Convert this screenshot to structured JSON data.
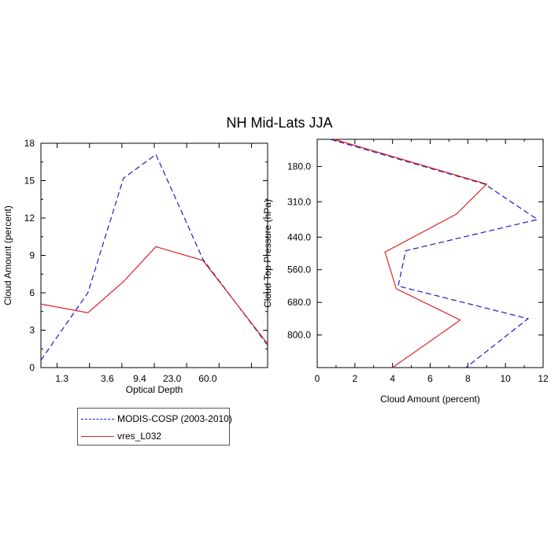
{
  "figure_title": "NH Mid-Lats JJA",
  "colors": {
    "modis": "#1a1acc",
    "model": "#dd2222",
    "axis": "#000000"
  },
  "legend": {
    "entries": [
      {
        "label": "MODIS-COSP (2003-2010)",
        "style": "dashed",
        "color": "#1a1acc"
      },
      {
        "label": "vres_L032",
        "style": "solid",
        "color": "#dd2222"
      }
    ]
  },
  "chart_data": [
    {
      "type": "line",
      "title": "",
      "xlabel": "Optical Depth",
      "ylabel": "Cloud Amount (percent)",
      "ylim": [
        0,
        18
      ],
      "yticks": [
        "0",
        "3",
        "6",
        "9",
        "12",
        "15",
        "18"
      ],
      "x_index_range": [
        0.5,
        7.5
      ],
      "x": [
        0.5,
        1.5,
        2.5,
        3.5,
        4.5,
        5.5,
        6.5,
        7.5
      ],
      "xtick_positions": [
        1,
        2,
        3,
        4,
        5,
        6
      ],
      "xtick_labels": [
        "1.3",
        "3.6",
        "9.4",
        "23.0",
        "60.0"
      ],
      "xtick_label_positions": [
        1,
        2,
        3,
        4,
        5,
        6,
        7
      ],
      "xtick_label_positions_used": [
        1,
        2,
        3,
        4,
        5
      ],
      "series": [
        {
          "name": "MODIS-COSP (2003-2010)",
          "values": [
            0.6,
            6.0,
            15.2,
            17.1,
            8.7,
            1.8
          ],
          "x": [
            0.5,
            1.95,
            3.05,
            4.05,
            5.5,
            7.5
          ]
        },
        {
          "name": "vres_L032",
          "values": [
            5.1,
            4.4,
            6.9,
            9.7,
            8.6,
            1.9
          ],
          "x": [
            0.5,
            1.95,
            3.05,
            4.05,
            5.5,
            7.5
          ]
        }
      ]
    },
    {
      "type": "line",
      "title": "",
      "xlabel": "Cloud Amount (percent)",
      "ylabel": "Cloud Top Pressure (hPa)",
      "xlim": [
        0,
        12
      ],
      "xticks": [
        "0",
        "2",
        "4",
        "6",
        "8",
        "10",
        "12"
      ],
      "ylim": [
        80,
        920
      ],
      "yticks": [
        "180.0",
        "310.0",
        "440.0",
        "560.0",
        "680.0",
        "800.0"
      ],
      "ytick_values": [
        180,
        310,
        440,
        560,
        680,
        800
      ],
      "series": [
        {
          "name": "MODIS-COSP (2003-2010)",
          "x": [
            0.7,
            8.9,
            11.7,
            4.7,
            4.3,
            11.2,
            7.9
          ],
          "pressure": [
            80,
            245,
            375,
            490,
            620,
            740,
            920
          ]
        },
        {
          "name": "vres_L032",
          "x": [
            0.9,
            9.0,
            7.4,
            3.6,
            4.2,
            7.6,
            4.0
          ],
          "pressure": [
            80,
            245,
            355,
            495,
            630,
            745,
            920
          ]
        }
      ]
    }
  ]
}
